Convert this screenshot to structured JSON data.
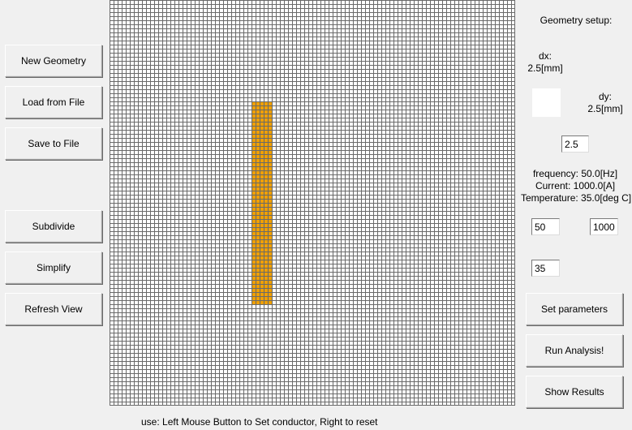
{
  "left_panel": {
    "new_geometry": "New Geometry",
    "load_from_file": "Load from File",
    "save_to_file": "Save to File",
    "subdivide": "Subdivide",
    "simplify": "Simplify",
    "refresh_view": "Refresh View"
  },
  "grid": {
    "rows": 100,
    "cols": 100,
    "line_color": "#6a6a6a",
    "background_color": "#ffffff",
    "conductor_color": "#f0a000",
    "conductor_cells": {
      "col_start": 35,
      "col_end": 39,
      "row_start": 25,
      "row_end": 74
    }
  },
  "right_panel": {
    "geometry_setup_label": "Geometry setup:",
    "dx_label": "dx:",
    "dx_value": "2.5[mm]",
    "dy_label": "dy:",
    "dy_value": "2.5[mm]",
    "cell_size_input": "2.5",
    "frequency_text": "frequency: 50.0[Hz]",
    "current_text": "Current: 1000.0[A]",
    "temperature_text": "Temperature: 35.0[deg C]",
    "frequency_input": "50",
    "current_input": "1000",
    "temperature_input": "35",
    "set_parameters": "Set parameters",
    "run_analysis": "Run Analysis!",
    "show_results": "Show Results"
  },
  "status_bar": {
    "text": "use: Left Mouse Button to Set conductor, Right to reset"
  }
}
